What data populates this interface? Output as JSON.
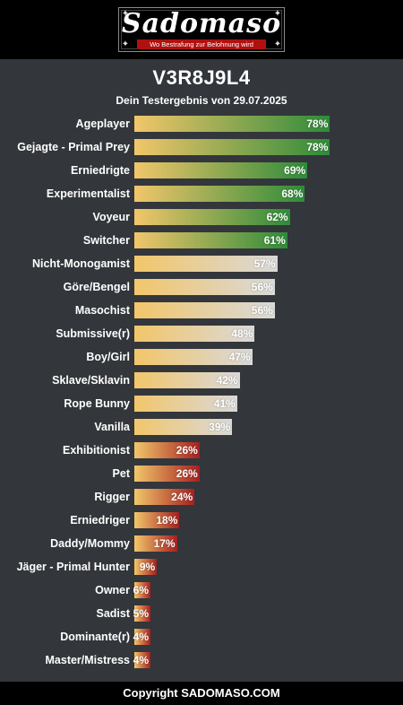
{
  "header": {
    "logo_text": "Sadomaso",
    "logo_tagline": "Wo Bestrafung zur Belohnung wird"
  },
  "title": "V3R8J9L4",
  "subtitle": "Dein Testergebnis von 29.07.2025",
  "colors": {
    "background": "#33363b",
    "bar_start": "#f2c66a",
    "green_end": "#2e8b3a",
    "gray_end": "#d9d9d9",
    "red_end": "#a52020"
  },
  "chart_data": {
    "type": "bar",
    "orientation": "horizontal",
    "value_suffix": "%",
    "xlim": [
      0,
      100
    ],
    "categories": [
      "Ageplayer",
      "Gejagte - Primal Prey",
      "Erniedrigte",
      "Experimentalist",
      "Voyeur",
      "Switcher",
      "Nicht-Monogamist",
      "Göre/Bengel",
      "Masochist",
      "Submissive(r)",
      "Boy/Girl",
      "Sklave/Sklavin",
      "Rope Bunny",
      "Vanilla",
      "Exhibitionist",
      "Pet",
      "Rigger",
      "Erniedriger",
      "Daddy/Mommy",
      "Jäger - Primal Hunter",
      "Owner",
      "Sadist",
      "Dominante(r)",
      "Master/Mistress"
    ],
    "values": [
      78,
      78,
      69,
      68,
      62,
      61,
      57,
      56,
      56,
      48,
      47,
      42,
      41,
      39,
      26,
      26,
      24,
      18,
      17,
      9,
      6,
      5,
      4,
      4
    ],
    "value_labels": [
      "78%",
      "78%",
      "69%",
      "68%",
      "62%",
      "61%",
      "57%",
      "56%",
      "56%",
      "48%",
      "47%",
      "42%",
      "41%",
      "39%",
      "26%",
      "26%",
      "24%",
      "18%",
      "17%",
      "9%",
      "6%",
      "5%",
      "4%",
      "4%"
    ]
  },
  "footer": {
    "copyright": "Copyright SADOMASO.COM"
  }
}
